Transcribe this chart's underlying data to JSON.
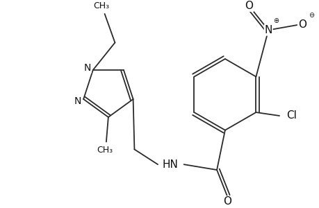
{
  "bg_color": "#ffffff",
  "bond_color": "#2a2a2a",
  "text_color": "#111111",
  "line_width": 1.3,
  "figsize": [
    4.6,
    3.0
  ],
  "dpi": 100,
  "font_size": 10,
  "font_size_small": 9,
  "xlim": [
    0,
    460
  ],
  "ylim": [
    0,
    300
  ]
}
